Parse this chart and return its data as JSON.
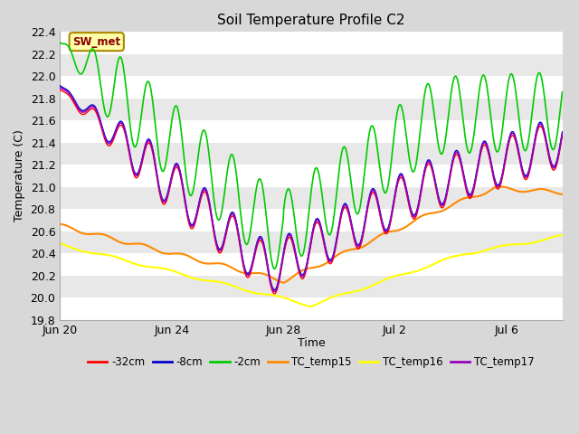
{
  "title": "Soil Temperature Profile C2",
  "xlabel": "Time",
  "ylabel": "Temperature (C)",
  "ylim": [
    19.8,
    22.4
  ],
  "xlim_days": [
    0,
    18
  ],
  "fig_bg_color": "#d8d8d8",
  "plot_bg_color": "#f0f0f0",
  "grid_color": "#ffffff",
  "annotation_text": "SW_met",
  "annotation_color": "#880000",
  "annotation_bg": "#ffffaa",
  "annotation_border": "#aa8800",
  "tick_labels": [
    "Jun 20",
    "Jun 24",
    "Jun 28",
    "Jul 2",
    "Jul 6"
  ],
  "tick_positions": [
    0,
    4,
    8,
    12,
    16
  ],
  "legend": [
    {
      "label": "-32cm",
      "color": "#ff0000"
    },
    {
      "label": "-8cm",
      "color": "#0000cc"
    },
    {
      "label": "-2cm",
      "color": "#00cc00"
    },
    {
      "label": "TC_temp15",
      "color": "#ff8800"
    },
    {
      "label": "TC_temp16",
      "color": "#ffff00"
    },
    {
      "label": "TC_temp17",
      "color": "#9900bb"
    }
  ]
}
